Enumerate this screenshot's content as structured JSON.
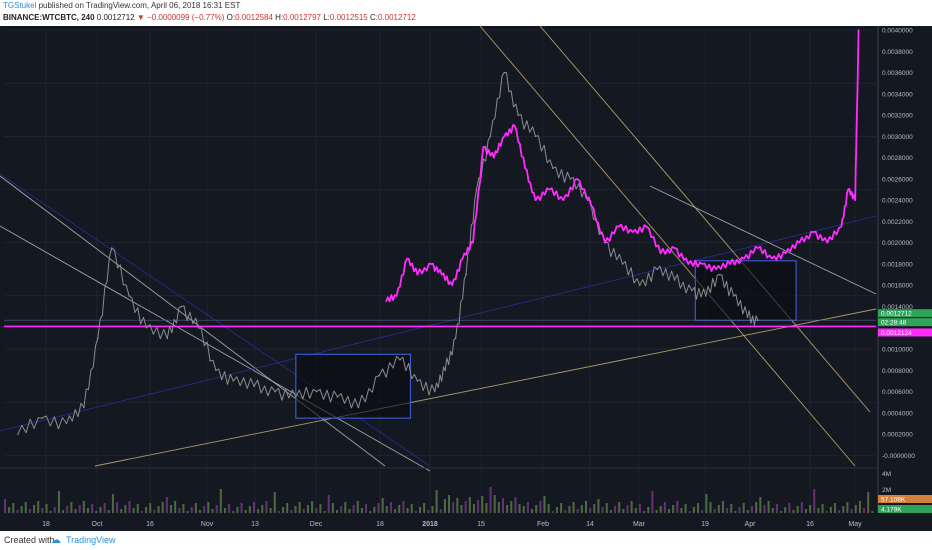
{
  "header": {
    "author": "TGStukel",
    "published_text": "published on TradingView.com, April 06, 2018 16:31 EST",
    "symbol": "BINANCE:WTCBTC, 240",
    "change": "−0.0000099 (−0.77%)",
    "ohlc_o_label": "O:",
    "ohlc_o": "0.0012584",
    "ohlc_h_label": "H:",
    "ohlc_h": "0.0012797",
    "ohlc_l_label": "L:",
    "ohlc_l": "0.0012515",
    "ohlc_c_label": "C:",
    "ohlc_c": "0.0012712",
    "last": "0.0012712"
  },
  "footer": {
    "created_text": "Created with",
    "brand": "TradingView",
    "brand_icon": "tradingview-cloud-icon"
  },
  "colors": {
    "bg": "#141821",
    "grid": "#242a36",
    "candle": "#8c8c8c",
    "magenta": "#ff2bff",
    "blue": "#2d2f9c",
    "tan": "#c9b37a",
    "white": "#b9bcc4",
    "green_badge": "#2fa35a",
    "orange_badge": "#d4803a"
  },
  "chart_data": {
    "type": "line",
    "title": "",
    "xlabel": "",
    "ylabel": "",
    "x_tick_labels": [
      "18",
      "Oct",
      "16",
      "Nov",
      "13",
      "Dec",
      "18",
      "2018",
      "15",
      "Feb",
      "14",
      "Mar",
      "19",
      "Apr",
      "16",
      "May"
    ],
    "y_tick_labels": [
      "0.0040000",
      "0.0038000",
      "0.0036000",
      "0.0034000",
      "0.0032000",
      "0.0030000",
      "0.0028000",
      "0.0026000",
      "0.0024000",
      "0.0022000",
      "0.0020000",
      "0.0018000",
      "0.0016000",
      "0.0014000",
      "0.0010000",
      "0.0008000",
      "0.0006000",
      "0.0004000",
      "0.0002000",
      "-0.0000000"
    ],
    "volume_tick_labels": [
      "4M",
      "2M"
    ],
    "ylim": [
      -0.0001,
      0.004
    ],
    "grid": true,
    "series": [
      {
        "x": [
          "2017-09-05",
          "2017-09-12",
          "2017-09-19",
          "2017-09-24",
          "2017-09-28",
          "2017-10-02",
          "2017-10-07",
          "2017-10-12",
          "2017-10-18",
          "2017-10-22",
          "2017-10-27",
          "2017-11-01",
          "2017-11-06",
          "2017-11-12",
          "2017-11-18",
          "2017-11-24",
          "2017-11-30",
          "2017-12-06",
          "2017-12-12",
          "2017-12-18",
          "2017-12-24",
          "2017-12-29",
          "2018-01-03",
          "2018-01-06",
          "2018-01-09",
          "2018-01-12",
          "2018-01-15",
          "2018-01-19",
          "2018-01-23",
          "2018-01-27",
          "2018-02-01",
          "2018-02-06",
          "2018-02-11",
          "2018-02-16",
          "2018-02-21",
          "2018-02-26",
          "2018-03-03",
          "2018-03-08",
          "2018-03-13",
          "2018-03-18",
          "2018-03-22",
          "2018-03-26",
          "2018-03-30",
          "2018-04-03",
          "2018-04-06"
        ],
        "values": [
          0.0002,
          0.00035,
          0.0003,
          0.00045,
          0.0011,
          0.00195,
          0.0015,
          0.0012,
          0.0011,
          0.0014,
          0.0012,
          0.0008,
          0.0007,
          0.00065,
          0.0006,
          0.00055,
          0.0006,
          0.00055,
          0.00045,
          0.00075,
          0.0009,
          0.0007,
          0.0006,
          0.0008,
          0.0011,
          0.0017,
          0.0025,
          0.003,
          0.0036,
          0.0032,
          0.003,
          0.0027,
          0.0026,
          0.0024,
          0.002,
          0.0018,
          0.0016,
          0.00175,
          0.00165,
          0.00155,
          0.0015,
          0.0017,
          0.0015,
          0.0013,
          0.00127
        ]
      },
      {
        "name": "",
        "x": [
          "2017-12-20",
          "2017-12-23",
          "2017-12-26",
          "2017-12-29",
          "2018-01-02",
          "2018-01-05",
          "2018-01-08",
          "2018-01-11",
          "2018-01-14",
          "2018-01-17",
          "2018-01-20",
          "2018-01-23",
          "2018-01-26",
          "2018-01-29",
          "2018-02-01",
          "2018-02-05",
          "2018-02-09",
          "2018-02-13",
          "2018-02-17",
          "2018-02-21",
          "2018-02-25",
          "2018-03-01",
          "2018-03-05",
          "2018-03-09",
          "2018-03-13",
          "2018-03-17",
          "2018-03-21",
          "2018-03-25",
          "2018-03-29",
          "2018-04-02",
          "2018-04-06",
          "2018-04-10",
          "2018-04-14",
          "2018-04-18",
          "2018-04-22",
          "2018-04-26",
          "2018-04-30",
          "2018-05-02",
          "2018-05-04",
          "2018-05-05"
        ],
        "values": [
          0.00145,
          0.0015,
          0.00185,
          0.0017,
          0.0018,
          0.0017,
          0.0016,
          0.00185,
          0.002,
          0.0029,
          0.0028,
          0.003,
          0.0031,
          0.0027,
          0.0024,
          0.0025,
          0.0024,
          0.0026,
          0.00235,
          0.002,
          0.00215,
          0.0021,
          0.00215,
          0.0019,
          0.00195,
          0.0018,
          0.0018,
          0.00175,
          0.0018,
          0.00185,
          0.00195,
          0.00185,
          0.0019,
          0.002,
          0.0021,
          0.002,
          0.00215,
          0.0025,
          0.0024,
          0.004
        ]
      }
    ],
    "horizontal_lines": [
      0.0012124,
      0.0012712
    ],
    "boxes": [
      {
        "x": [
          "2017-11-24",
          "2017-12-27"
        ],
        "y": [
          0.00035,
          0.00095
        ]
      },
      {
        "x": [
          "2018-03-19",
          "2018-04-17"
        ],
        "y": [
          0.00127,
          0.00183
        ]
      }
    ],
    "price_badges": [
      {
        "label": "0.0012712"
      },
      {
        "label": "02:28:48"
      },
      {
        "label": "0.0012124"
      }
    ],
    "volume_badges": [
      {
        "label": "57.108K"
      },
      {
        "label": "4.179K"
      }
    ]
  }
}
